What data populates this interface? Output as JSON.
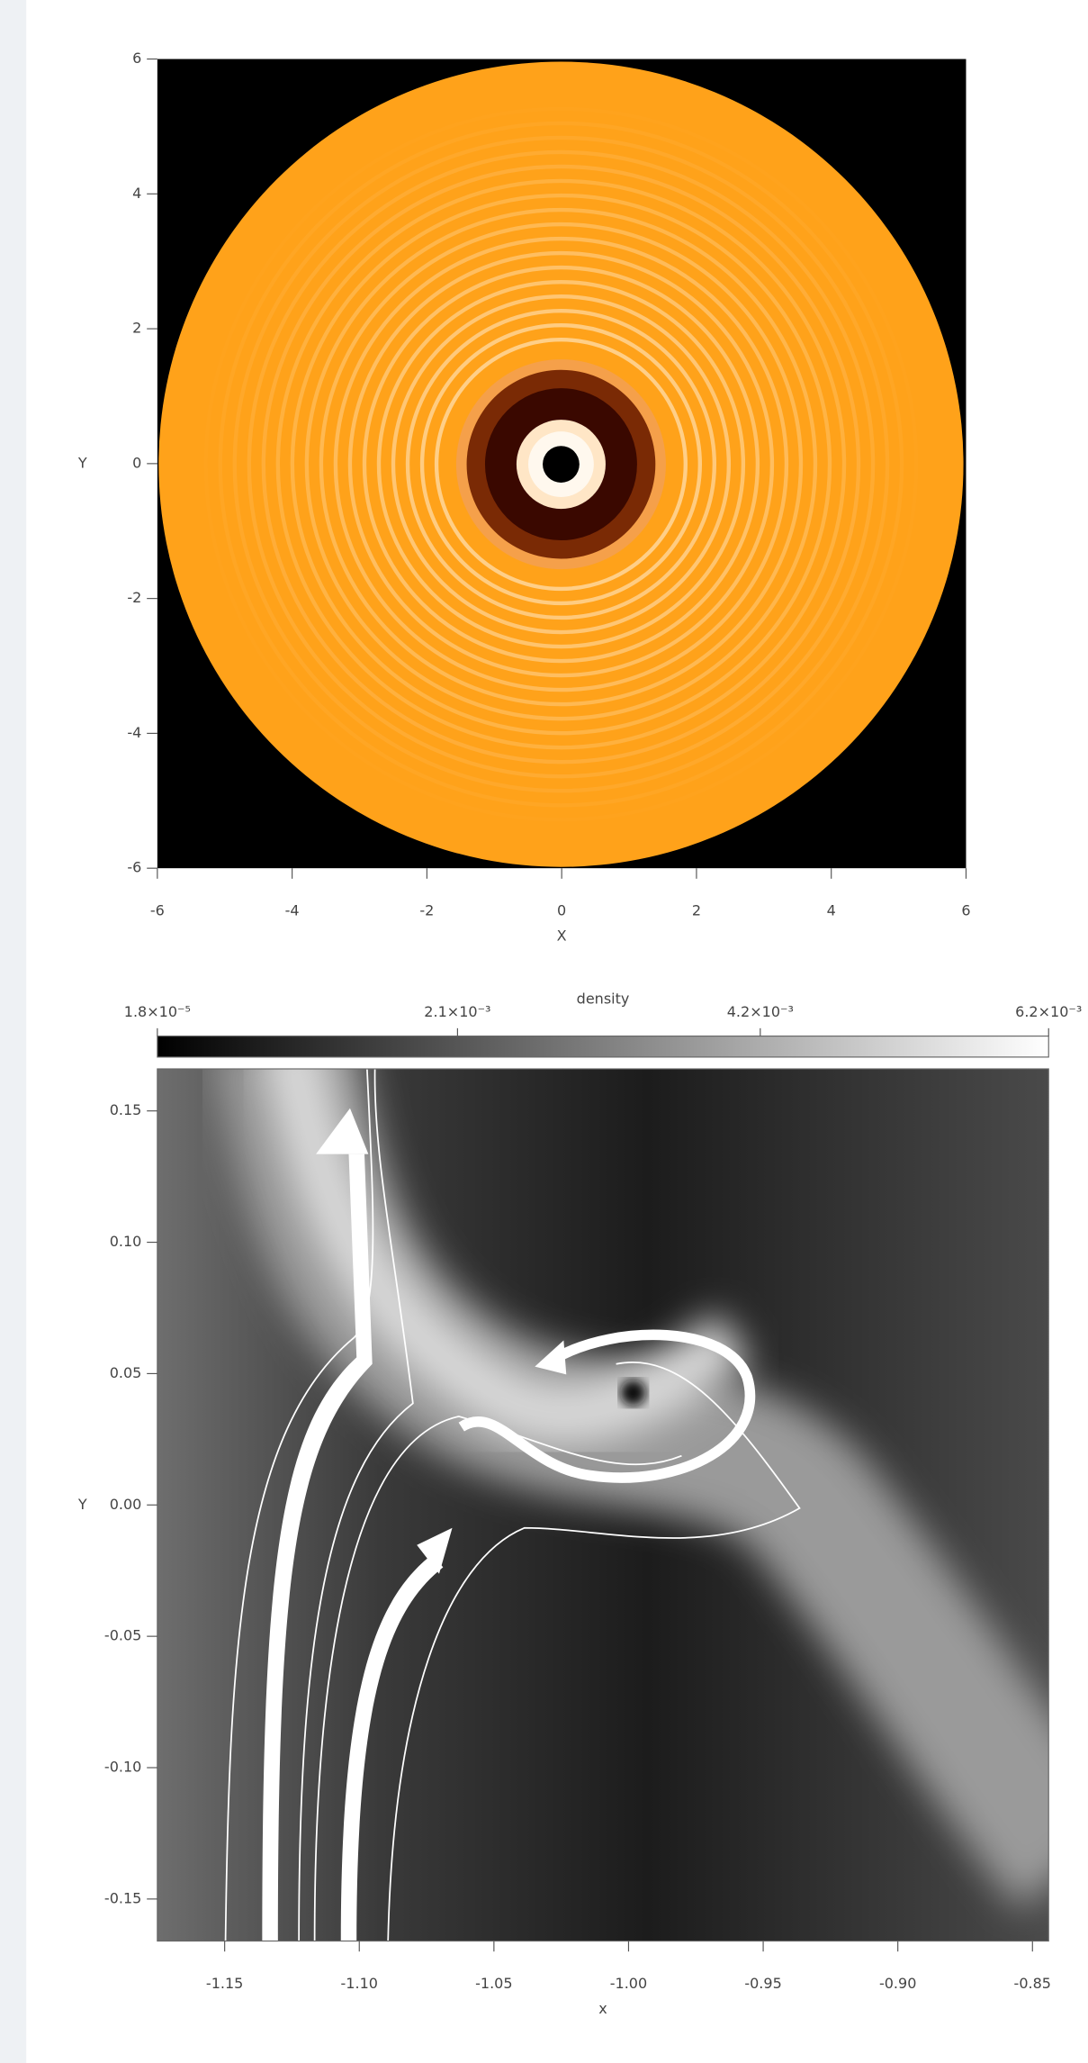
{
  "chart_data": [
    {
      "type": "heatmap",
      "xlabel": "X",
      "ylabel": "Y",
      "xlim": [
        -6,
        6
      ],
      "ylim": [
        -6,
        6
      ],
      "xticks": [
        -6,
        -4,
        -2,
        0,
        2,
        4,
        6
      ],
      "yticks": [
        -6,
        -4,
        -2,
        0,
        2,
        4,
        6
      ]
    },
    {
      "type": "heatmap",
      "xlabel": "x",
      "ylabel": "Y",
      "xlim": [
        -1.175,
        -0.844
      ],
      "ylim": [
        -0.166,
        0.166
      ],
      "xticks": [
        -1.15,
        {
          "value": -1.1,
          "label": "-1.10"
        },
        -1.05,
        {
          "value": -1,
          "label": "-1.00"
        },
        -0.95,
        {
          "value": -0.9,
          "label": "-0.90"
        },
        -0.85
      ],
      "yticks": [
        -0.15,
        {
          "value": -0.1,
          "label": "-0.10"
        },
        -0.05,
        {
          "value": 0,
          "label": "0.00"
        },
        0.05,
        {
          "value": 0.1,
          "label": "0.10"
        },
        0.15
      ],
      "colorbar": {
        "label": "density",
        "lim": [
          1.8e-05,
          0.0062
        ],
        "ticks": [
          {
            "value": 1.8e-05,
            "label": "1.8×10⁻⁵"
          },
          {
            "value": 0.0021,
            "label": "2.1×10⁻³"
          },
          {
            "value": 0.0042,
            "label": "4.2×10⁻³"
          },
          {
            "value": 0.0062,
            "label": "6.2×10⁻³"
          }
        ]
      }
    }
  ]
}
